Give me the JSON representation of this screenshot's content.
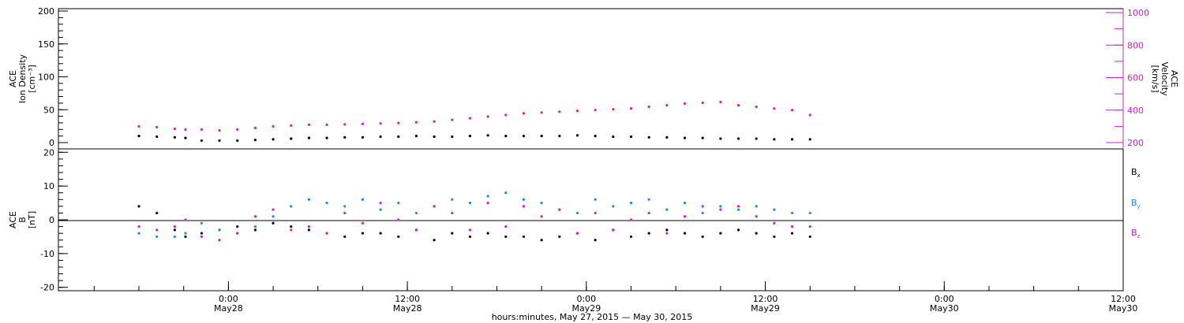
{
  "chart_data": [
    {
      "type": "scatter",
      "panel": "top",
      "ylabel_left": [
        "ACE",
        "Ion Density",
        "[cm⁻³]"
      ],
      "ylabel_right": [
        "ACE",
        "Velocity",
        "[km/s]"
      ],
      "yticks_left": [
        "0",
        "50",
        "100",
        "150",
        "200"
      ],
      "yticks_right": [
        "200",
        "400",
        "600",
        "800",
        "1000"
      ],
      "ylim_left": [
        0,
        200
      ],
      "ylim_right": [
        200,
        1000
      ],
      "colors": {
        "density": "#000000",
        "velocity": "#cc22cc"
      },
      "series": [
        {
          "name": "Ion Density",
          "axis": "left",
          "x": [
            -1.0,
            -0.8,
            -0.6,
            -0.48,
            -0.3,
            -0.1,
            0.1,
            0.3,
            0.5,
            0.7,
            0.9,
            1.1,
            1.3,
            1.5,
            1.7,
            1.9,
            2.1,
            2.3,
            2.5,
            2.7,
            2.9,
            3.1,
            3.3,
            3.5,
            3.7,
            3.9,
            4.1,
            4.3,
            4.5,
            4.7,
            4.9,
            5.1,
            5.3,
            5.5,
            5.7,
            5.9,
            6.1,
            6.3,
            6.5
          ],
          "y": [
            10,
            9,
            8,
            7,
            3,
            3,
            3,
            4,
            5,
            6,
            7,
            7,
            8,
            8,
            9,
            9,
            10,
            9,
            9,
            10,
            11,
            10,
            10,
            10,
            10,
            11,
            10,
            9,
            9,
            8,
            8,
            7,
            7,
            6,
            6,
            6,
            5,
            5,
            5
          ]
        },
        {
          "name": "Velocity",
          "axis": "right",
          "x": [
            -1.0,
            -0.8,
            -0.6,
            -0.48,
            -0.3,
            -0.1,
            0.1,
            0.3,
            0.5,
            0.7,
            0.9,
            1.1,
            1.3,
            1.5,
            1.7,
            1.9,
            2.1,
            2.3,
            2.5,
            2.7,
            2.9,
            3.1,
            3.3,
            3.5,
            3.7,
            3.9,
            4.1,
            4.3,
            4.5,
            4.7,
            4.9,
            5.1,
            5.3,
            5.5,
            5.7,
            5.9,
            6.1,
            6.3,
            6.5
          ],
          "y": [
            300,
            295,
            285,
            280,
            280,
            275,
            280,
            290,
            300,
            305,
            310,
            310,
            312,
            315,
            318,
            320,
            325,
            330,
            340,
            350,
            360,
            370,
            380,
            385,
            390,
            395,
            400,
            405,
            410,
            420,
            430,
            440,
            445,
            450,
            430,
            420,
            410,
            400,
            370
          ]
        }
      ]
    },
    {
      "type": "scatter",
      "panel": "bottom",
      "ylabel": [
        "ACE",
        "B",
        "[nT]"
      ],
      "yticks": [
        "-20",
        "-10",
        "0",
        "10",
        "20"
      ],
      "ylim": [
        -21,
        21
      ],
      "legend": [
        {
          "label": "B",
          "sub": "x",
          "color": "#000000"
        },
        {
          "label": "B",
          "sub": "y",
          "color": "#1e88e5"
        },
        {
          "label": "B",
          "sub": "z",
          "color": "#cc22cc"
        }
      ],
      "series": [
        {
          "name": "Bx",
          "color": "#000000",
          "x": [
            -1.0,
            -0.8,
            -0.6,
            -0.48,
            -0.3,
            -0.1,
            0.1,
            0.3,
            0.5,
            0.7,
            0.9,
            1.1,
            1.3,
            1.5,
            1.7,
            1.9,
            2.1,
            2.3,
            2.5,
            2.7,
            2.9,
            3.1,
            3.3,
            3.5,
            3.7,
            3.9,
            4.1,
            4.3,
            4.5,
            4.7,
            4.9,
            5.1,
            5.3,
            5.5,
            5.7,
            5.9,
            6.1,
            6.3,
            6.5
          ],
          "y": [
            4,
            2,
            -3,
            -5,
            -4,
            -3,
            -2,
            -3,
            -1,
            -2,
            -3,
            -4,
            -5,
            -4,
            -4,
            -5,
            -3,
            -6,
            -4,
            -5,
            -4,
            -5,
            -5,
            -6,
            -5,
            -4,
            -6,
            -3,
            -5,
            -4,
            -3,
            -4,
            -5,
            -4,
            -3,
            -4,
            -5,
            -4,
            -5
          ]
        },
        {
          "name": "By",
          "color": "#1e88e5",
          "x": [
            -1.0,
            -0.8,
            -0.6,
            -0.48,
            -0.3,
            -0.1,
            0.1,
            0.3,
            0.5,
            0.7,
            0.9,
            1.1,
            1.3,
            1.5,
            1.7,
            1.9,
            2.1,
            2.3,
            2.5,
            2.7,
            2.9,
            3.1,
            3.3,
            3.5,
            3.7,
            3.9,
            4.1,
            4.3,
            4.5,
            4.7,
            4.9,
            5.1,
            5.3,
            5.5,
            5.7,
            5.9,
            6.1,
            6.3,
            6.5
          ],
          "y": [
            -4,
            -5,
            -5,
            -4,
            -1,
            -3,
            -4,
            -2,
            1,
            4,
            6,
            5,
            4,
            6,
            3,
            5,
            2,
            4,
            6,
            5,
            7,
            8,
            6,
            5,
            3,
            2,
            6,
            4,
            5,
            6,
            3,
            5,
            2,
            4,
            3,
            4,
            3,
            2,
            2
          ]
        },
        {
          "name": "Bz",
          "color": "#cc22cc",
          "x": [
            -1.0,
            -0.8,
            -0.6,
            -0.48,
            -0.3,
            -0.1,
            0.1,
            0.3,
            0.5,
            0.7,
            0.9,
            1.1,
            1.3,
            1.5,
            1.7,
            1.9,
            2.1,
            2.3,
            2.5,
            2.7,
            2.9,
            3.1,
            3.3,
            3.5,
            3.7,
            3.9,
            4.1,
            4.3,
            4.5,
            4.7,
            4.9,
            5.1,
            5.3,
            5.5,
            5.7,
            5.9,
            6.1,
            6.3,
            6.5
          ],
          "y": [
            -2,
            -3,
            -2,
            0,
            -5,
            -6,
            -4,
            1,
            3,
            -3,
            -2,
            -4,
            2,
            -1,
            5,
            0,
            -3,
            4,
            2,
            -3,
            5,
            -2,
            4,
            1,
            3,
            -4,
            2,
            -3,
            0,
            2,
            -4,
            1,
            4,
            3,
            4,
            1,
            -1,
            -2,
            -2
          ]
        }
      ]
    }
  ],
  "x_axis": {
    "ticks": [
      {
        "time": "0:00",
        "date": "May28",
        "x": 0
      },
      {
        "time": "12:00",
        "date": "May28",
        "x": 2
      },
      {
        "time": "0:00",
        "date": "May29",
        "x": 4
      },
      {
        "time": "12:00",
        "date": "May29",
        "x": 6
      },
      {
        "time": "0:00",
        "date": "May30",
        "x": 8
      },
      {
        "time": "12:00",
        "date": "May30",
        "x": 10
      }
    ],
    "xlabel": "hours:minutes, May 27, 2015 — May 30, 2015",
    "xlim": [
      -1.9,
      10
    ]
  }
}
